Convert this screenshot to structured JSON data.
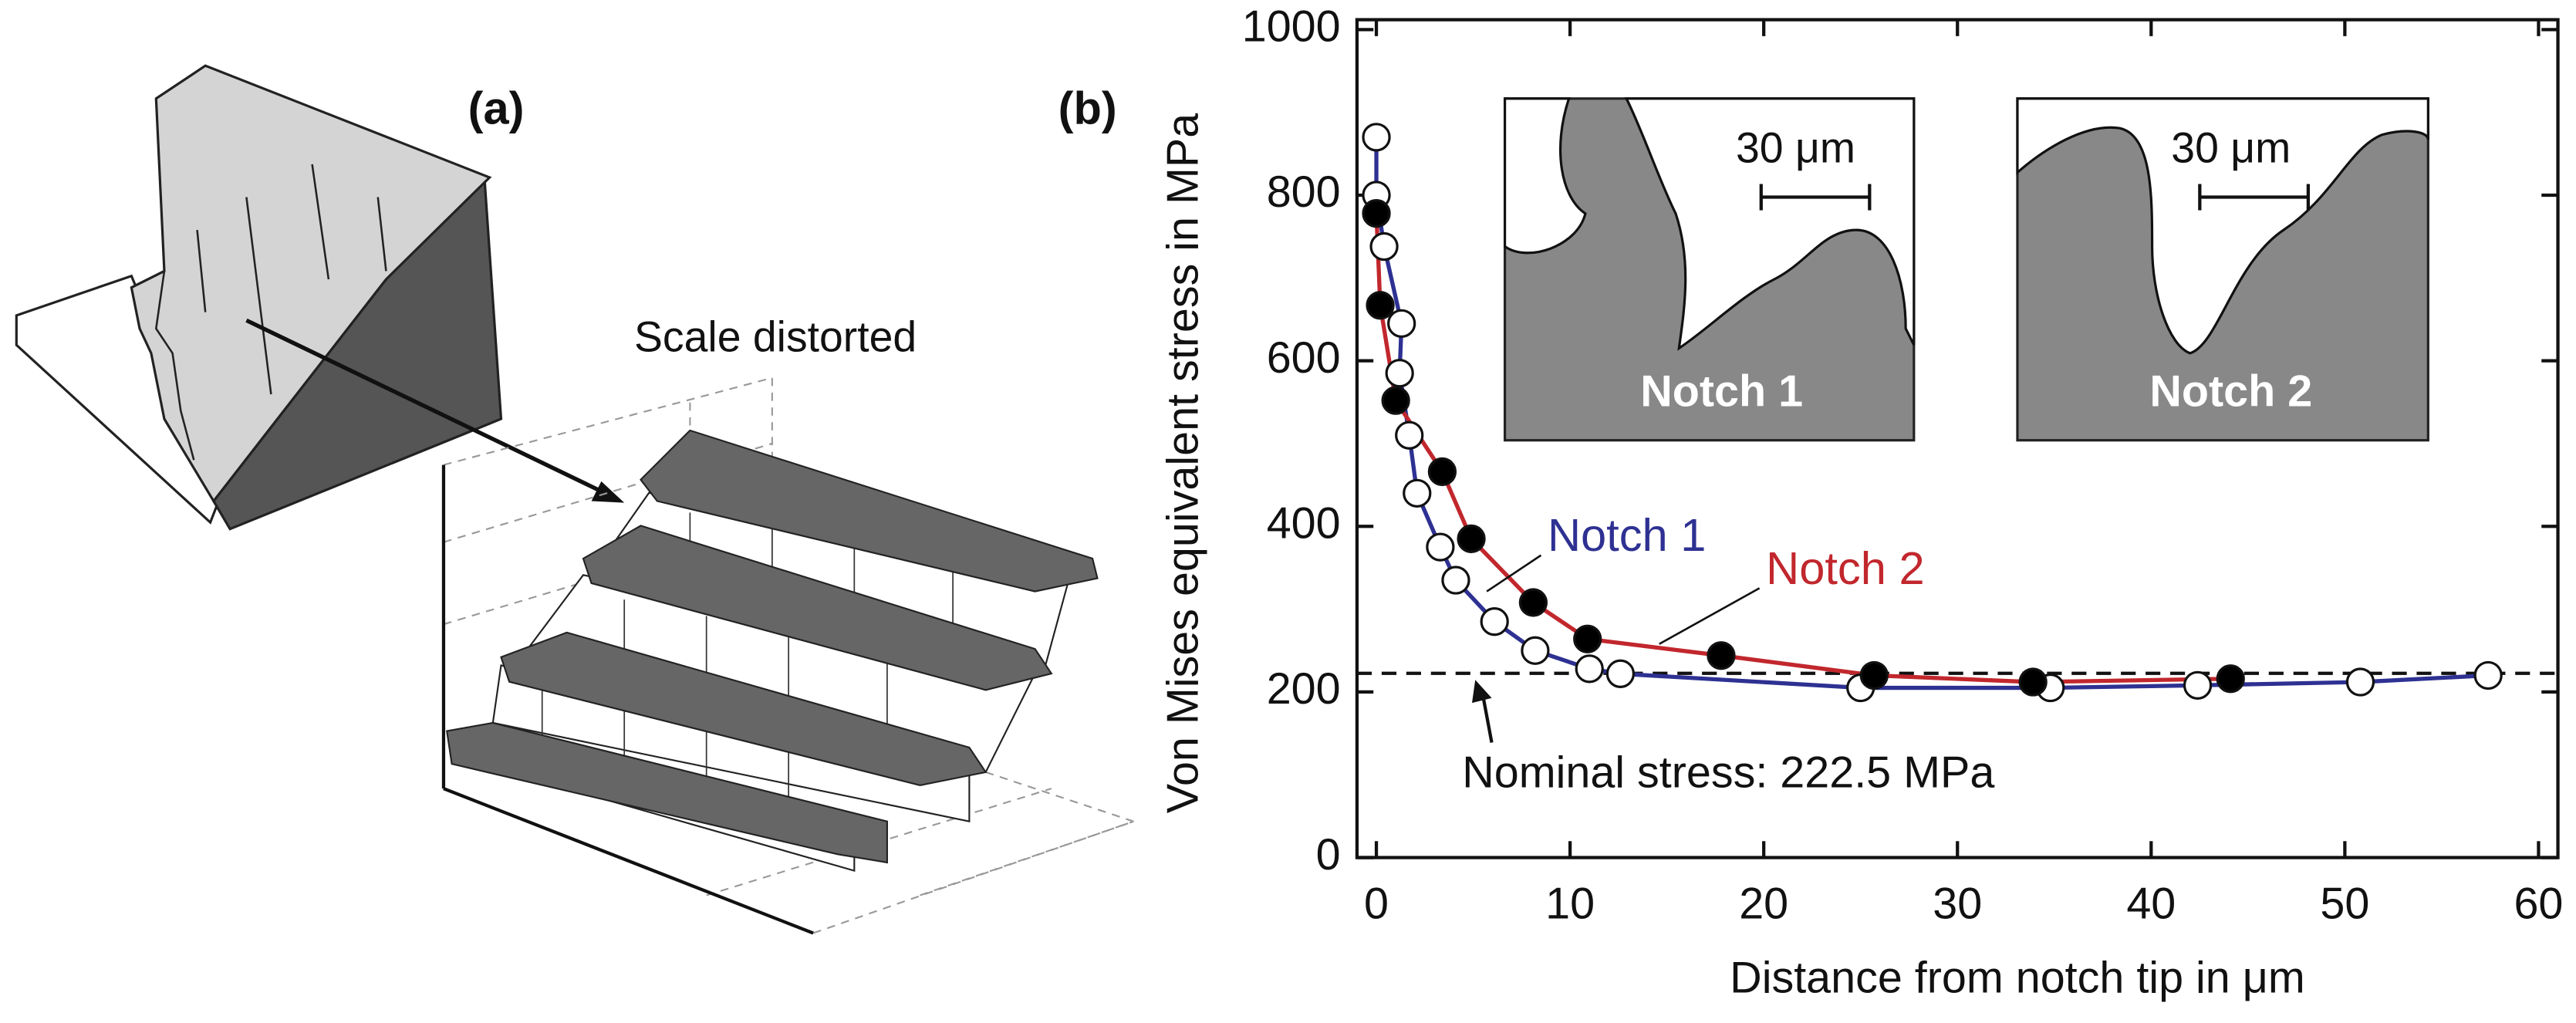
{
  "figure": {
    "panel_a": {
      "label": "(a)",
      "annotation": "Scale distorted"
    }
  },
  "chart_data": {
    "type": "scatter",
    "panel_label": "(b)",
    "xlabel": "Distance from notch tip in μm",
    "ylabel": "Von Mises equivalent stress in MPa",
    "xlim": [
      -1,
      61
    ],
    "ylim": [
      0,
      1000
    ],
    "xticks": [
      0,
      10,
      20,
      30,
      40,
      50,
      60
    ],
    "yticks": [
      0,
      200,
      400,
      600,
      800,
      1000
    ],
    "series": [
      {
        "name": "Notch 1",
        "color": "#2e3192",
        "marker_fill": "#ffffff",
        "x": [
          0,
          0,
          0.4,
          1.3,
          1.2,
          1.7,
          2.1,
          3.3,
          4.1,
          6.1,
          8.2,
          11,
          12.6,
          25,
          34.8,
          42.4,
          50.8,
          57.4
        ],
        "values": [
          870,
          800,
          738,
          645,
          585,
          510,
          440,
          375,
          335,
          285,
          250,
          228,
          222,
          205,
          205,
          208,
          212,
          220
        ]
      },
      {
        "name": "Notch 2",
        "color": "#c1272d",
        "marker_fill": "#000000",
        "x": [
          0,
          0.2,
          1,
          3.4,
          4.9,
          8.1,
          10.9,
          17.8,
          25.7,
          33.9,
          44.1
        ],
        "values": [
          778,
          667,
          552,
          466,
          385,
          308,
          264,
          244,
          220,
          212,
          216
        ]
      }
    ],
    "reference_line": {
      "value": 222.5,
      "label": "Nominal stress: 222.5 MPa"
    },
    "insets": [
      {
        "label": "Notch 1",
        "scale_bar": "30 μm"
      },
      {
        "label": "Notch 2",
        "scale_bar": "30 μm"
      }
    ]
  }
}
